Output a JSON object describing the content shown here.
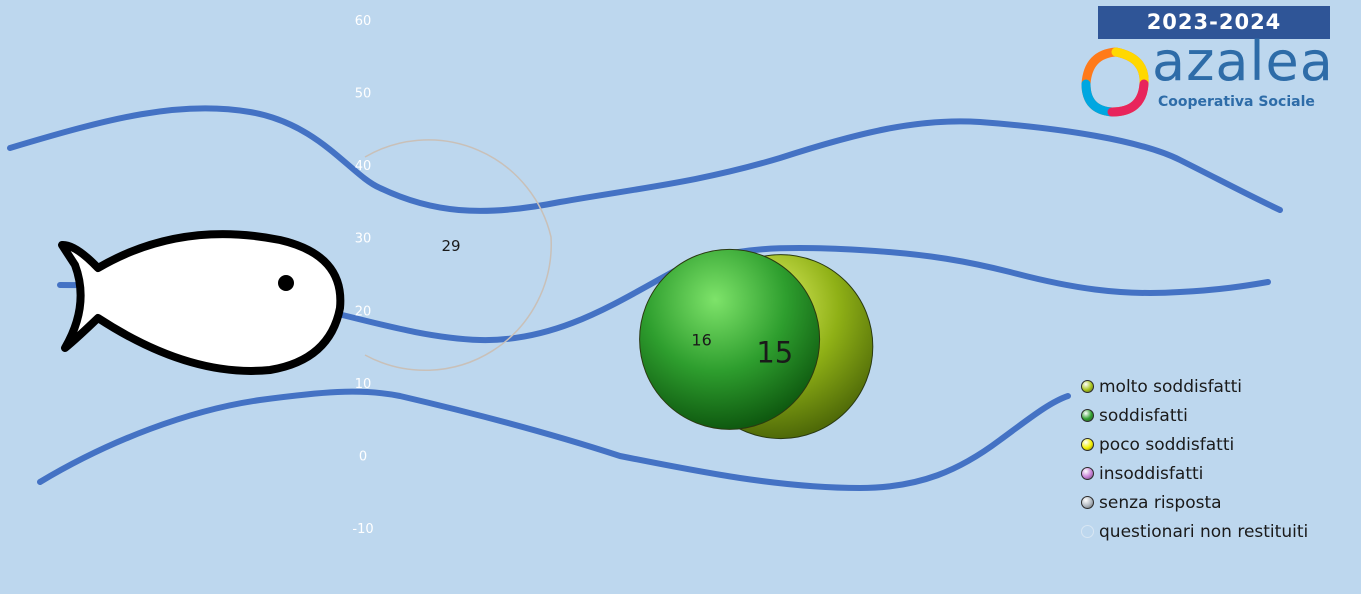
{
  "header": {
    "badge": "2023-2024"
  },
  "logo": {
    "word": "azalea",
    "subtitle": "Cooperativa Sociale"
  },
  "chart_data": {
    "type": "bubble",
    "title": "",
    "xlabel": "",
    "ylabel": "",
    "ylim": [
      -10,
      60
    ],
    "y_ticks": [
      60,
      50,
      40,
      30,
      20,
      10,
      0,
      -10
    ],
    "grid": false,
    "legend_position": "bottom-right",
    "series": [
      {
        "name": "molto soddisfatti",
        "color": "#a8c41a",
        "x": 1.88,
        "y": 15,
        "label": "15"
      },
      {
        "name": "soddisfatti",
        "color": "#2e9e2e",
        "x": 1.56,
        "y": 16,
        "label": "16"
      },
      {
        "name": "poco soddisfatti",
        "color": "#f4f000"
      },
      {
        "name": "insoddisfatti",
        "color": "#c77fd6"
      },
      {
        "name": "senza risposta",
        "color": "#b0b8c0"
      },
      {
        "name": "questionari non restituiti",
        "color": "#bdd7ee",
        "x": 0.0,
        "y": 29,
        "label": "29"
      }
    ]
  },
  "illustration": {
    "fish": "fish-icon",
    "waves": "wave-lines",
    "wave_color": "#4472c4"
  }
}
